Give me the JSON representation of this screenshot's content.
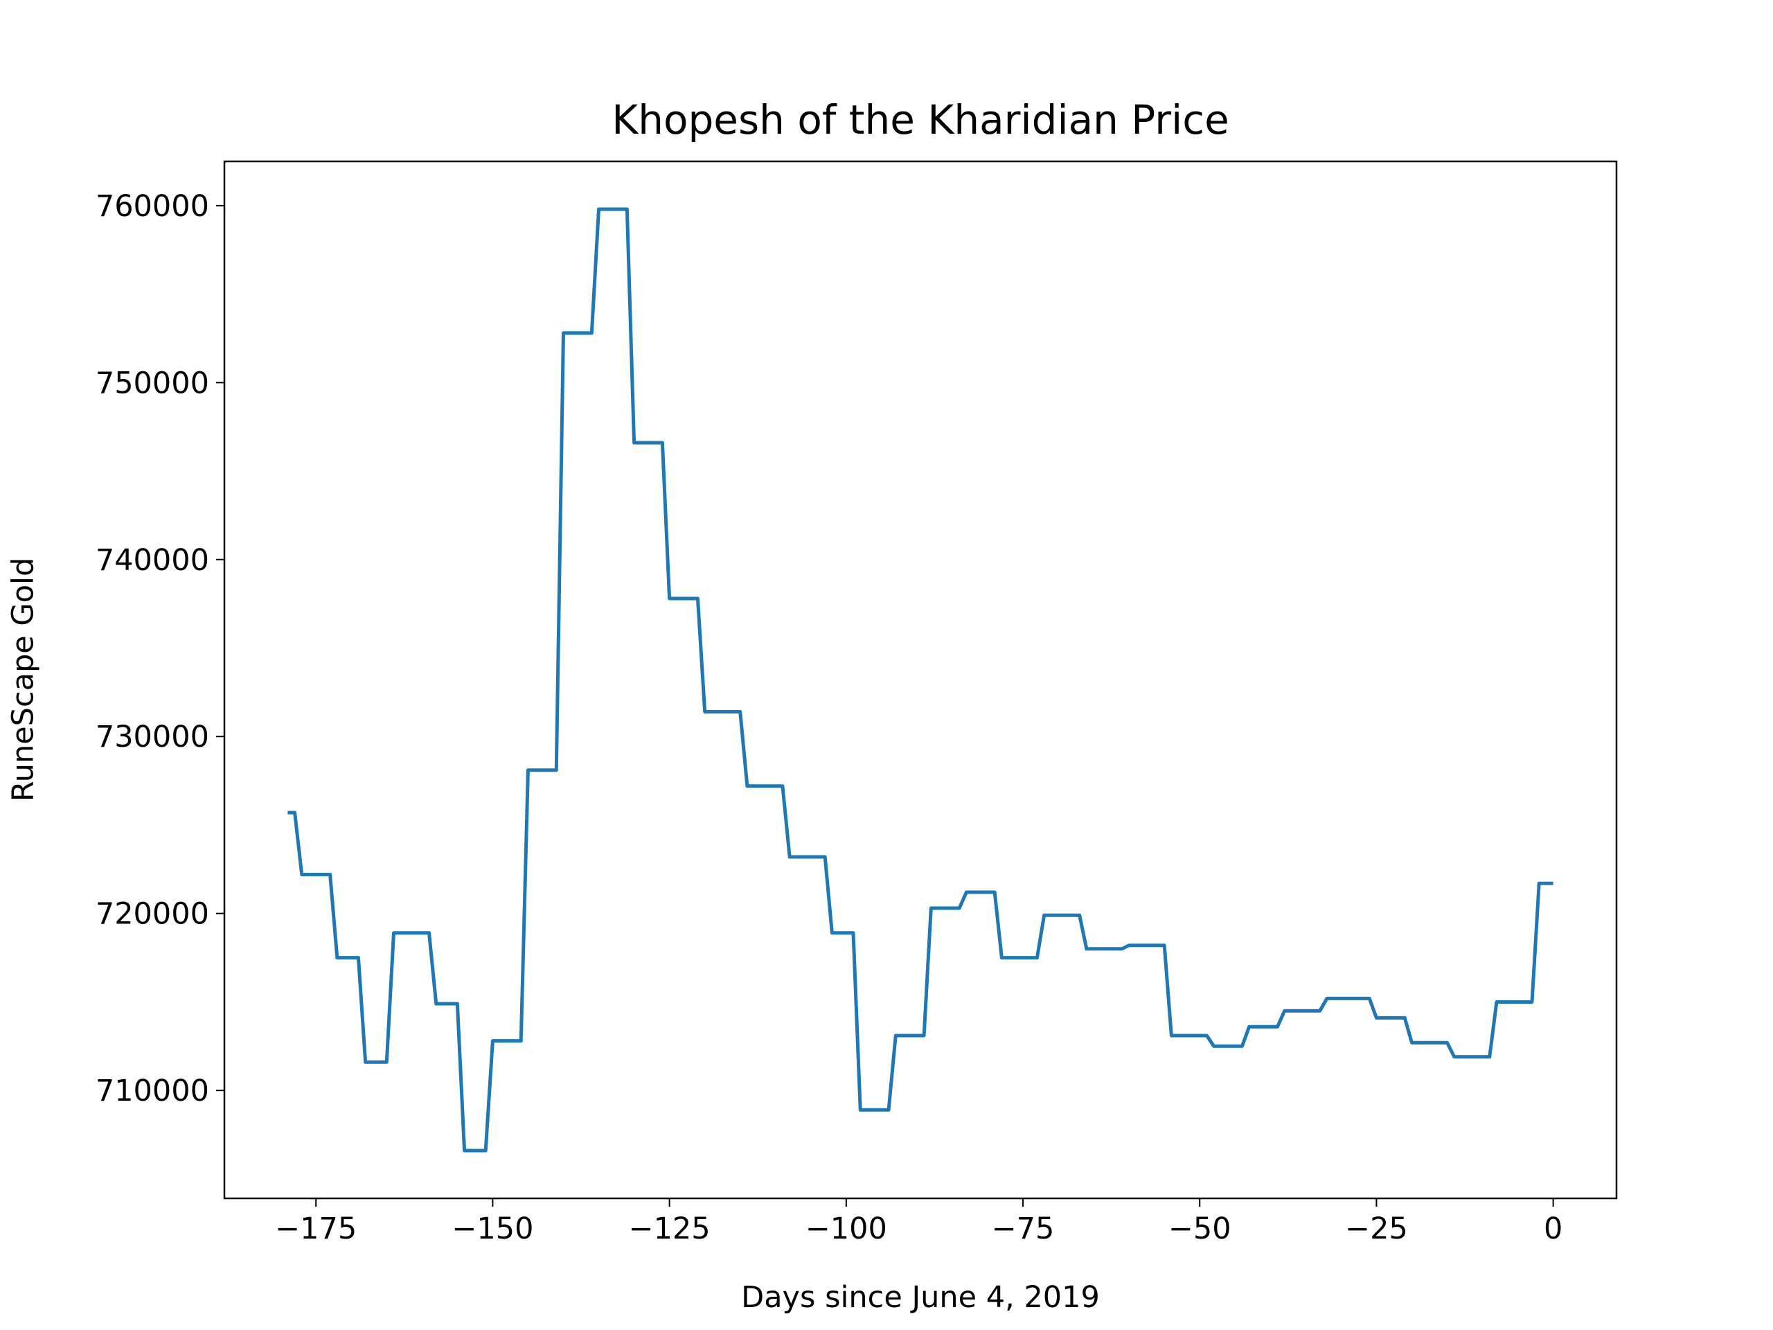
{
  "chart_data": {
    "type": "line",
    "title": "Khopesh of the Kharidian Price",
    "x_label": "Days since June 4, 2019",
    "y_label": "RuneScape Gold",
    "x": [
      -179,
      -178,
      -177,
      -173,
      -172,
      -169,
      -168,
      -165,
      -164,
      -159,
      -158,
      -155,
      -154,
      -151,
      -150,
      -146,
      -145,
      -141,
      -140,
      -136,
      -135,
      -131,
      -130,
      -126,
      -125,
      -121,
      -120,
      -115,
      -114,
      -109,
      -108,
      -103,
      -102,
      -99,
      -98,
      -94,
      -93,
      -89,
      -88,
      -84,
      -83,
      -79,
      -78,
      -73,
      -72,
      -67,
      -66,
      -61,
      -60,
      -55,
      -54,
      -49,
      -48,
      -44,
      -43,
      -39,
      -38,
      -33,
      -32,
      -26,
      -25,
      -21,
      -20,
      -15,
      -14,
      -9,
      -8,
      -3,
      -2,
      0
    ],
    "series": [
      {
        "name": "Price",
        "color": "#1f77b4",
        "values": [
          725700,
          725700,
          722200,
          722200,
          717500,
          717500,
          711600,
          711600,
          718900,
          718900,
          714900,
          714900,
          706600,
          706600,
          712800,
          712800,
          728100,
          728100,
          752800,
          752800,
          759800,
          759800,
          746600,
          746600,
          737800,
          737800,
          731400,
          731400,
          727200,
          727200,
          723200,
          723200,
          718900,
          718900,
          708900,
          708900,
          713100,
          713100,
          720300,
          720300,
          721200,
          721200,
          717500,
          717500,
          719900,
          719900,
          718000,
          718000,
          718200,
          718200,
          713100,
          713100,
          712500,
          712500,
          713600,
          713600,
          714500,
          714500,
          715200,
          715200,
          714100,
          714100,
          712700,
          712700,
          711900,
          711900,
          715000,
          715000,
          721700,
          721700
        ]
      }
    ],
    "xlim": [
      -187.95,
      8.95
    ],
    "ylim": [
      703900,
      762500
    ],
    "xticks": [
      {
        "value": -175,
        "label": "−175"
      },
      {
        "value": -150,
        "label": "−150"
      },
      {
        "value": -125,
        "label": "−125"
      },
      {
        "value": -100,
        "label": "−100"
      },
      {
        "value": -75,
        "label": "−75"
      },
      {
        "value": -50,
        "label": "−50"
      },
      {
        "value": -25,
        "label": "−25"
      },
      0
    ],
    "yticks": [
      710000,
      720000,
      730000,
      740000,
      750000,
      760000
    ]
  }
}
